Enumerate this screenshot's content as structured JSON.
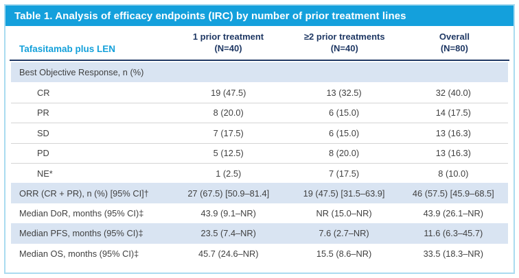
{
  "table": {
    "title": "Table 1. Analysis of efficacy endpoints (IRC) by number of prior treatment lines",
    "group_label": "Tafasitamab plus LEN",
    "columns": [
      {
        "line1": "1 prior treatment",
        "line2": "(N=40)"
      },
      {
        "line1": "≥2 prior treatments",
        "line2": "(N=40)"
      },
      {
        "line1": "Overall",
        "line2": "(N=80)"
      }
    ],
    "rows": [
      {
        "label": "Best Objective Response, n (%)",
        "values": [
          "",
          "",
          ""
        ]
      },
      {
        "label": "CR",
        "values": [
          "19 (47.5)",
          "13 (32.5)",
          "32 (40.0)"
        ]
      },
      {
        "label": "PR",
        "values": [
          "8 (20.0)",
          "6 (15.0)",
          "14 (17.5)"
        ]
      },
      {
        "label": "SD",
        "values": [
          "7 (17.5)",
          "6 (15.0)",
          "13 (16.3)"
        ]
      },
      {
        "label": "PD",
        "values": [
          "5 (12.5)",
          "8 (20.0)",
          "13 (16.3)"
        ]
      },
      {
        "label": "NE*",
        "values": [
          "1 (2.5)",
          "7 (17.5)",
          "8 (10.0)"
        ]
      },
      {
        "label": "ORR (CR + PR), n (%) [95% CI]†",
        "values": [
          "27 (67.5) [50.9–81.4]",
          "19 (47.5) [31.5–63.9]",
          "46 (57.5) [45.9–68.5]"
        ]
      },
      {
        "label": "Median DoR, months (95% CI)‡",
        "values": [
          "43.9 (9.1–NR)",
          "NR (15.0–NR)",
          "43.9 (26.1–NR)"
        ]
      },
      {
        "label": "Median PFS, months (95% CI)‡",
        "values": [
          "23.5 (7.4–NR)",
          "7.6 (2.7–NR)",
          "11.6 (6.3–45.7)"
        ]
      },
      {
        "label": "Median OS, months (95% CI)‡",
        "values": [
          "45.7 (24.6–NR)",
          "15.5 (8.6–NR)",
          "33.5 (18.3–NR)"
        ]
      }
    ]
  },
  "colors": {
    "title_bar_blue": "#14a0dc",
    "accent_cyan_text": "#13a0da",
    "header_navy": "#1f3864",
    "row_highlight_blue": "#d9e4f2",
    "frame_border_light_blue": "#a9dbf0",
    "body_text": "#3f3f3f"
  }
}
